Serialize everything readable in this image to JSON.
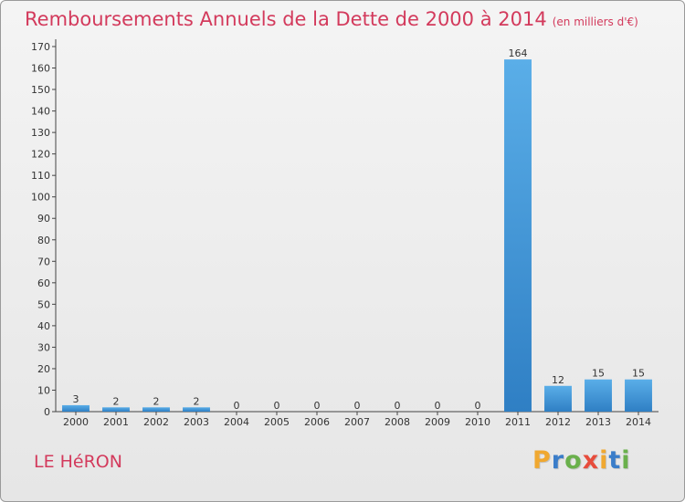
{
  "title": "Remboursements Annuels de la Dette de 2000 à 2014",
  "subtitle": "(en milliers d'€)",
  "commune": "LE HéRON",
  "logo": {
    "letters": [
      "P",
      "r",
      "o",
      "x",
      "i",
      "t",
      "i"
    ],
    "colors": [
      "#f0a830",
      "#3a7dc9",
      "#6ab04c",
      "#e74c3c",
      "#f0a830",
      "#3a7dc9",
      "#6ab04c"
    ]
  },
  "chart_data": {
    "type": "bar",
    "title": "Remboursements Annuels de la Dette de 2000 à 2014",
    "xlabel": "",
    "ylabel": "",
    "ylim": [
      0,
      170
    ],
    "yticks": [
      0,
      10,
      20,
      30,
      40,
      50,
      60,
      70,
      80,
      90,
      100,
      110,
      120,
      130,
      140,
      150,
      160,
      170
    ],
    "categories": [
      "2000",
      "2001",
      "2002",
      "2003",
      "2004",
      "2005",
      "2006",
      "2007",
      "2008",
      "2009",
      "2010",
      "2011",
      "2012",
      "2013",
      "2014"
    ],
    "values": [
      3,
      2,
      2,
      2,
      0,
      0,
      0,
      0,
      0,
      0,
      0,
      164,
      12,
      15,
      15
    ],
    "grid": false,
    "bar_color": "#3a8fd8"
  }
}
